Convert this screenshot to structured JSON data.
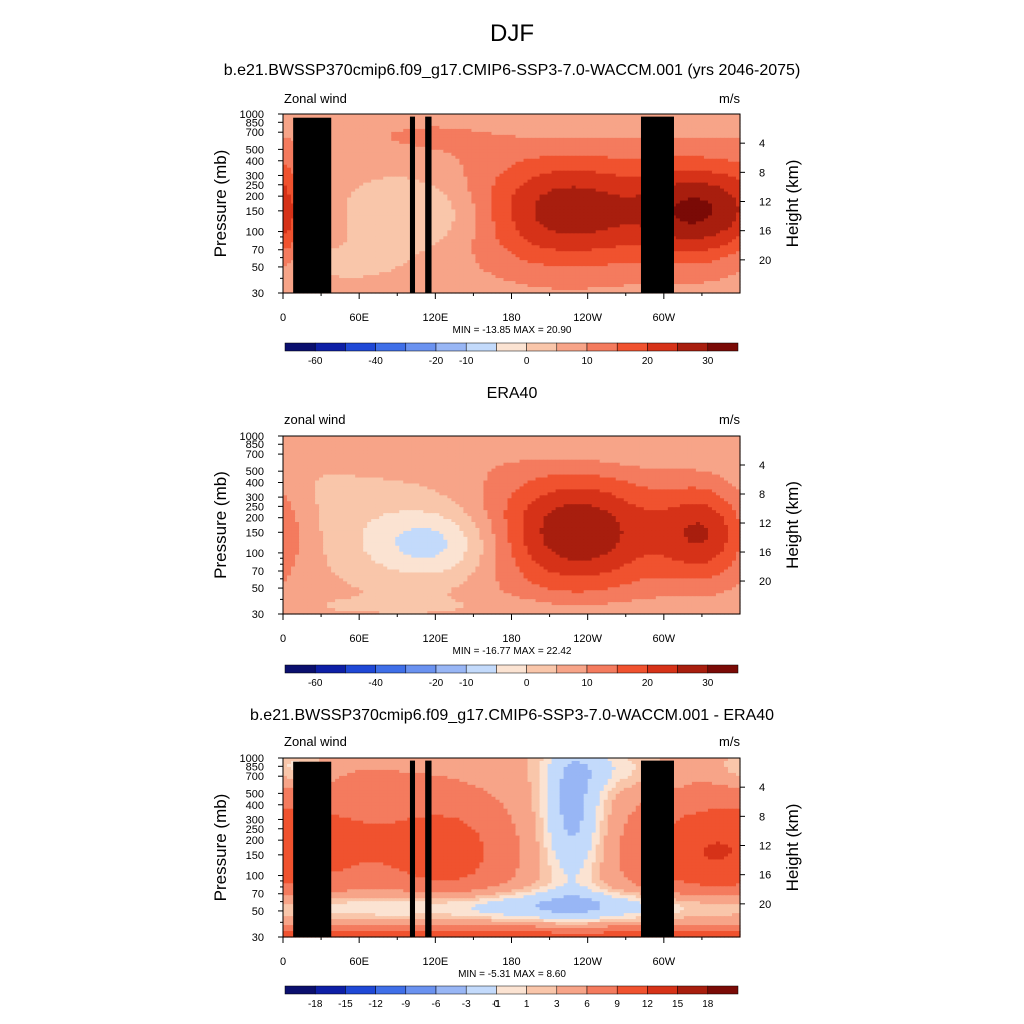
{
  "page": {
    "title": "DJF"
  },
  "colors": {
    "scale": [
      "#0a0f6e",
      "#0d1fa6",
      "#1f48d6",
      "#3f6fe8",
      "#6a92f0",
      "#98b6f5",
      "#c3dafb",
      "#fbe3d2",
      "#f9c6aa",
      "#f7a488",
      "#f47b5e",
      "#f0522f",
      "#d63218",
      "#a81e0e",
      "#7a0a06"
    ]
  },
  "chart_data": [
    {
      "type": "heatmap",
      "title": "b.e21.BWSSP370cmip6.f09_g17.CMIP6-SSP3-7.0-WACCM.001 (yrs 2046-2075)",
      "left_label": "Zonal wind",
      "right_label": "m/s",
      "ylabel": "Pressure (mb)",
      "y2label": "Height (km)",
      "yticks": [
        30,
        50,
        70,
        100,
        150,
        200,
        250,
        300,
        400,
        500,
        700,
        850,
        1000
      ],
      "y2ticks": [
        20,
        16,
        12,
        8,
        4
      ],
      "xticks": [
        "0",
        "60E",
        "120E",
        "180",
        "120W",
        "60W"
      ],
      "xlim": [
        0,
        360
      ],
      "ylim": [
        1000,
        30
      ],
      "stats": "MIN = -13.85  MAX =  20.90",
      "colorbar_labels": [
        "-60",
        "-40",
        "-20",
        "-10",
        "0",
        "10",
        "20",
        "30"
      ],
      "blobs": [
        {
          "x": 115,
          "p": 140,
          "rx": 42,
          "rp": 0.5,
          "a": -9
        },
        {
          "x": 225,
          "p": 150,
          "rx": 58,
          "rp": 0.8,
          "a": 22
        },
        {
          "x": 330,
          "p": 150,
          "rx": 32,
          "rp": 0.7,
          "a": 20
        },
        {
          "x": 45,
          "p": 55,
          "rx": 30,
          "rp": 0.22,
          "a": -4
        },
        {
          "x": 125,
          "p": 650,
          "rx": 70,
          "rp": 0.3,
          "a": 4
        },
        {
          "x": 2,
          "p": 180,
          "rx": 14,
          "rp": 0.7,
          "a": 4
        },
        {
          "x": 20,
          "p": 230,
          "rx": 12,
          "rp": 0.2,
          "a": -3
        },
        {
          "x": 200,
          "p": 750,
          "rx": 40,
          "rp": 0.35,
          "a": -3
        }
      ],
      "base": 1.5,
      "topography": true
    },
    {
      "type": "heatmap",
      "title": "ERA40",
      "left_label": "zonal wind",
      "right_label": "m/s",
      "ylabel": "Pressure (mb)",
      "y2label": "Height (km)",
      "yticks": [
        30,
        50,
        70,
        100,
        150,
        200,
        250,
        300,
        400,
        500,
        700,
        850,
        1000
      ],
      "y2ticks": [
        20,
        16,
        12,
        8,
        4
      ],
      "xticks": [
        "0",
        "60E",
        "120E",
        "180",
        "120W",
        "60W"
      ],
      "xlim": [
        0,
        360
      ],
      "ylim": [
        1000,
        30
      ],
      "stats": "MIN = -16.77  MAX =  22.42",
      "colorbar_labels": [
        "-60",
        "-40",
        "-20",
        "-10",
        "0",
        "10",
        "20",
        "30"
      ],
      "blobs": [
        {
          "x": 118,
          "p": 120,
          "rx": 38,
          "rp": 0.5,
          "a": -14
        },
        {
          "x": 232,
          "p": 150,
          "rx": 50,
          "rp": 0.85,
          "a": 23
        },
        {
          "x": 333,
          "p": 150,
          "rx": 26,
          "rp": 0.7,
          "a": 17
        },
        {
          "x": 40,
          "p": 300,
          "rx": 60,
          "rp": 1.0,
          "a": -3
        },
        {
          "x": 90,
          "p": 700,
          "rx": 60,
          "rp": 0.3,
          "a": 4
        },
        {
          "x": 250,
          "p": 780,
          "rx": 60,
          "rp": 0.3,
          "a": -3
        },
        {
          "x": 180,
          "p": 35,
          "rx": 160,
          "rp": 0.15,
          "a": -2
        }
      ],
      "base": 1.5,
      "topography": false
    },
    {
      "type": "heatmap",
      "title": "b.e21.BWSSP370cmip6.f09_g17.CMIP6-SSP3-7.0-WACCM.001 - ERA40",
      "left_label": "Zonal wind",
      "right_label": "m/s",
      "ylabel": "Pressure (mb)",
      "y2label": "Height (km)",
      "yticks": [
        30,
        50,
        70,
        100,
        150,
        200,
        250,
        300,
        400,
        500,
        700,
        850,
        1000
      ],
      "y2ticks": [
        20,
        16,
        12,
        8,
        4
      ],
      "xticks": [
        "0",
        "60E",
        "120E",
        "180",
        "120W",
        "60W"
      ],
      "xlim": [
        0,
        360
      ],
      "ylim": [
        1000,
        30
      ],
      "stats": "MIN =  -5.31  MAX =   8.60",
      "colorbar_labels": [
        "-18",
        "-15",
        "-12",
        "-9",
        "-6",
        "-3",
        "-1",
        "0",
        "1",
        "3",
        "6",
        "9",
        "12",
        "15",
        "18"
      ],
      "blobs": [
        {
          "x": 180,
          "p": 30,
          "rx": 250,
          "rp": 0.15,
          "a": 6
        },
        {
          "x": 180,
          "p": 55,
          "rx": 250,
          "rp": 0.22,
          "a": -4.5
        },
        {
          "x": 50,
          "p": 200,
          "rx": 75,
          "rp": 0.95,
          "a": 4.5
        },
        {
          "x": 135,
          "p": 150,
          "rx": 30,
          "rp": 0.7,
          "a": 4
        },
        {
          "x": 228,
          "p": 350,
          "rx": 18,
          "rp": 1.1,
          "a": -5.5
        },
        {
          "x": 330,
          "p": 150,
          "rx": 40,
          "rp": 0.7,
          "a": 5
        },
        {
          "x": 10,
          "p": 800,
          "rx": 20,
          "rp": 0.3,
          "a": -3
        },
        {
          "x": 265,
          "p": 800,
          "rx": 30,
          "rp": 0.3,
          "a": -2
        }
      ],
      "base": 1.5,
      "topography": true
    }
  ]
}
